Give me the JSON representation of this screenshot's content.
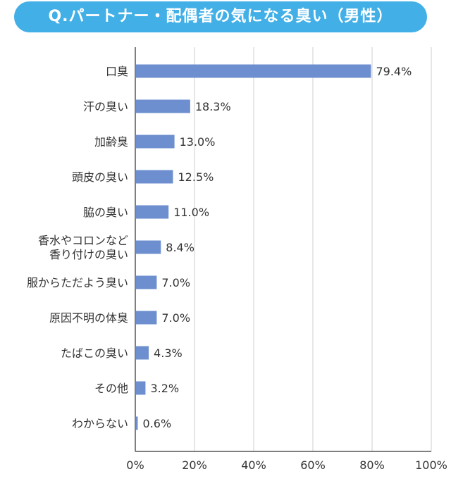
{
  "chart_data": {
    "type": "bar",
    "orientation": "horizontal",
    "title": "Q.パートナー・配偶者の気になる臭い（男性）",
    "categories": [
      [
        "口臭"
      ],
      [
        "汗の臭い"
      ],
      [
        "加齢臭"
      ],
      [
        "頭皮の臭い"
      ],
      [
        "脇の臭い"
      ],
      [
        "香水やコロンなど",
        "香り付けの臭い"
      ],
      [
        "服からただよう臭い"
      ],
      [
        "原因不明の体臭"
      ],
      [
        "たばこの臭い"
      ],
      [
        "その他"
      ],
      [
        "わからない"
      ]
    ],
    "values": [
      79.4,
      18.3,
      13.0,
      12.5,
      11.0,
      8.4,
      7.0,
      7.0,
      4.3,
      3.2,
      0.6
    ],
    "value_labels": [
      "79.4%",
      "18.3%",
      "13.0%",
      "12.5%",
      "11.0%",
      "8.4%",
      "7.0%",
      "7.0%",
      "4.3%",
      "3.2%",
      "0.6%"
    ],
    "xlim": [
      0,
      100
    ],
    "xticks": [
      "0%",
      "20%",
      "40%",
      "60%",
      "80%",
      "100%"
    ],
    "grid": true,
    "bar_color": "#6d8fcf",
    "title_color": "#42afe6"
  }
}
